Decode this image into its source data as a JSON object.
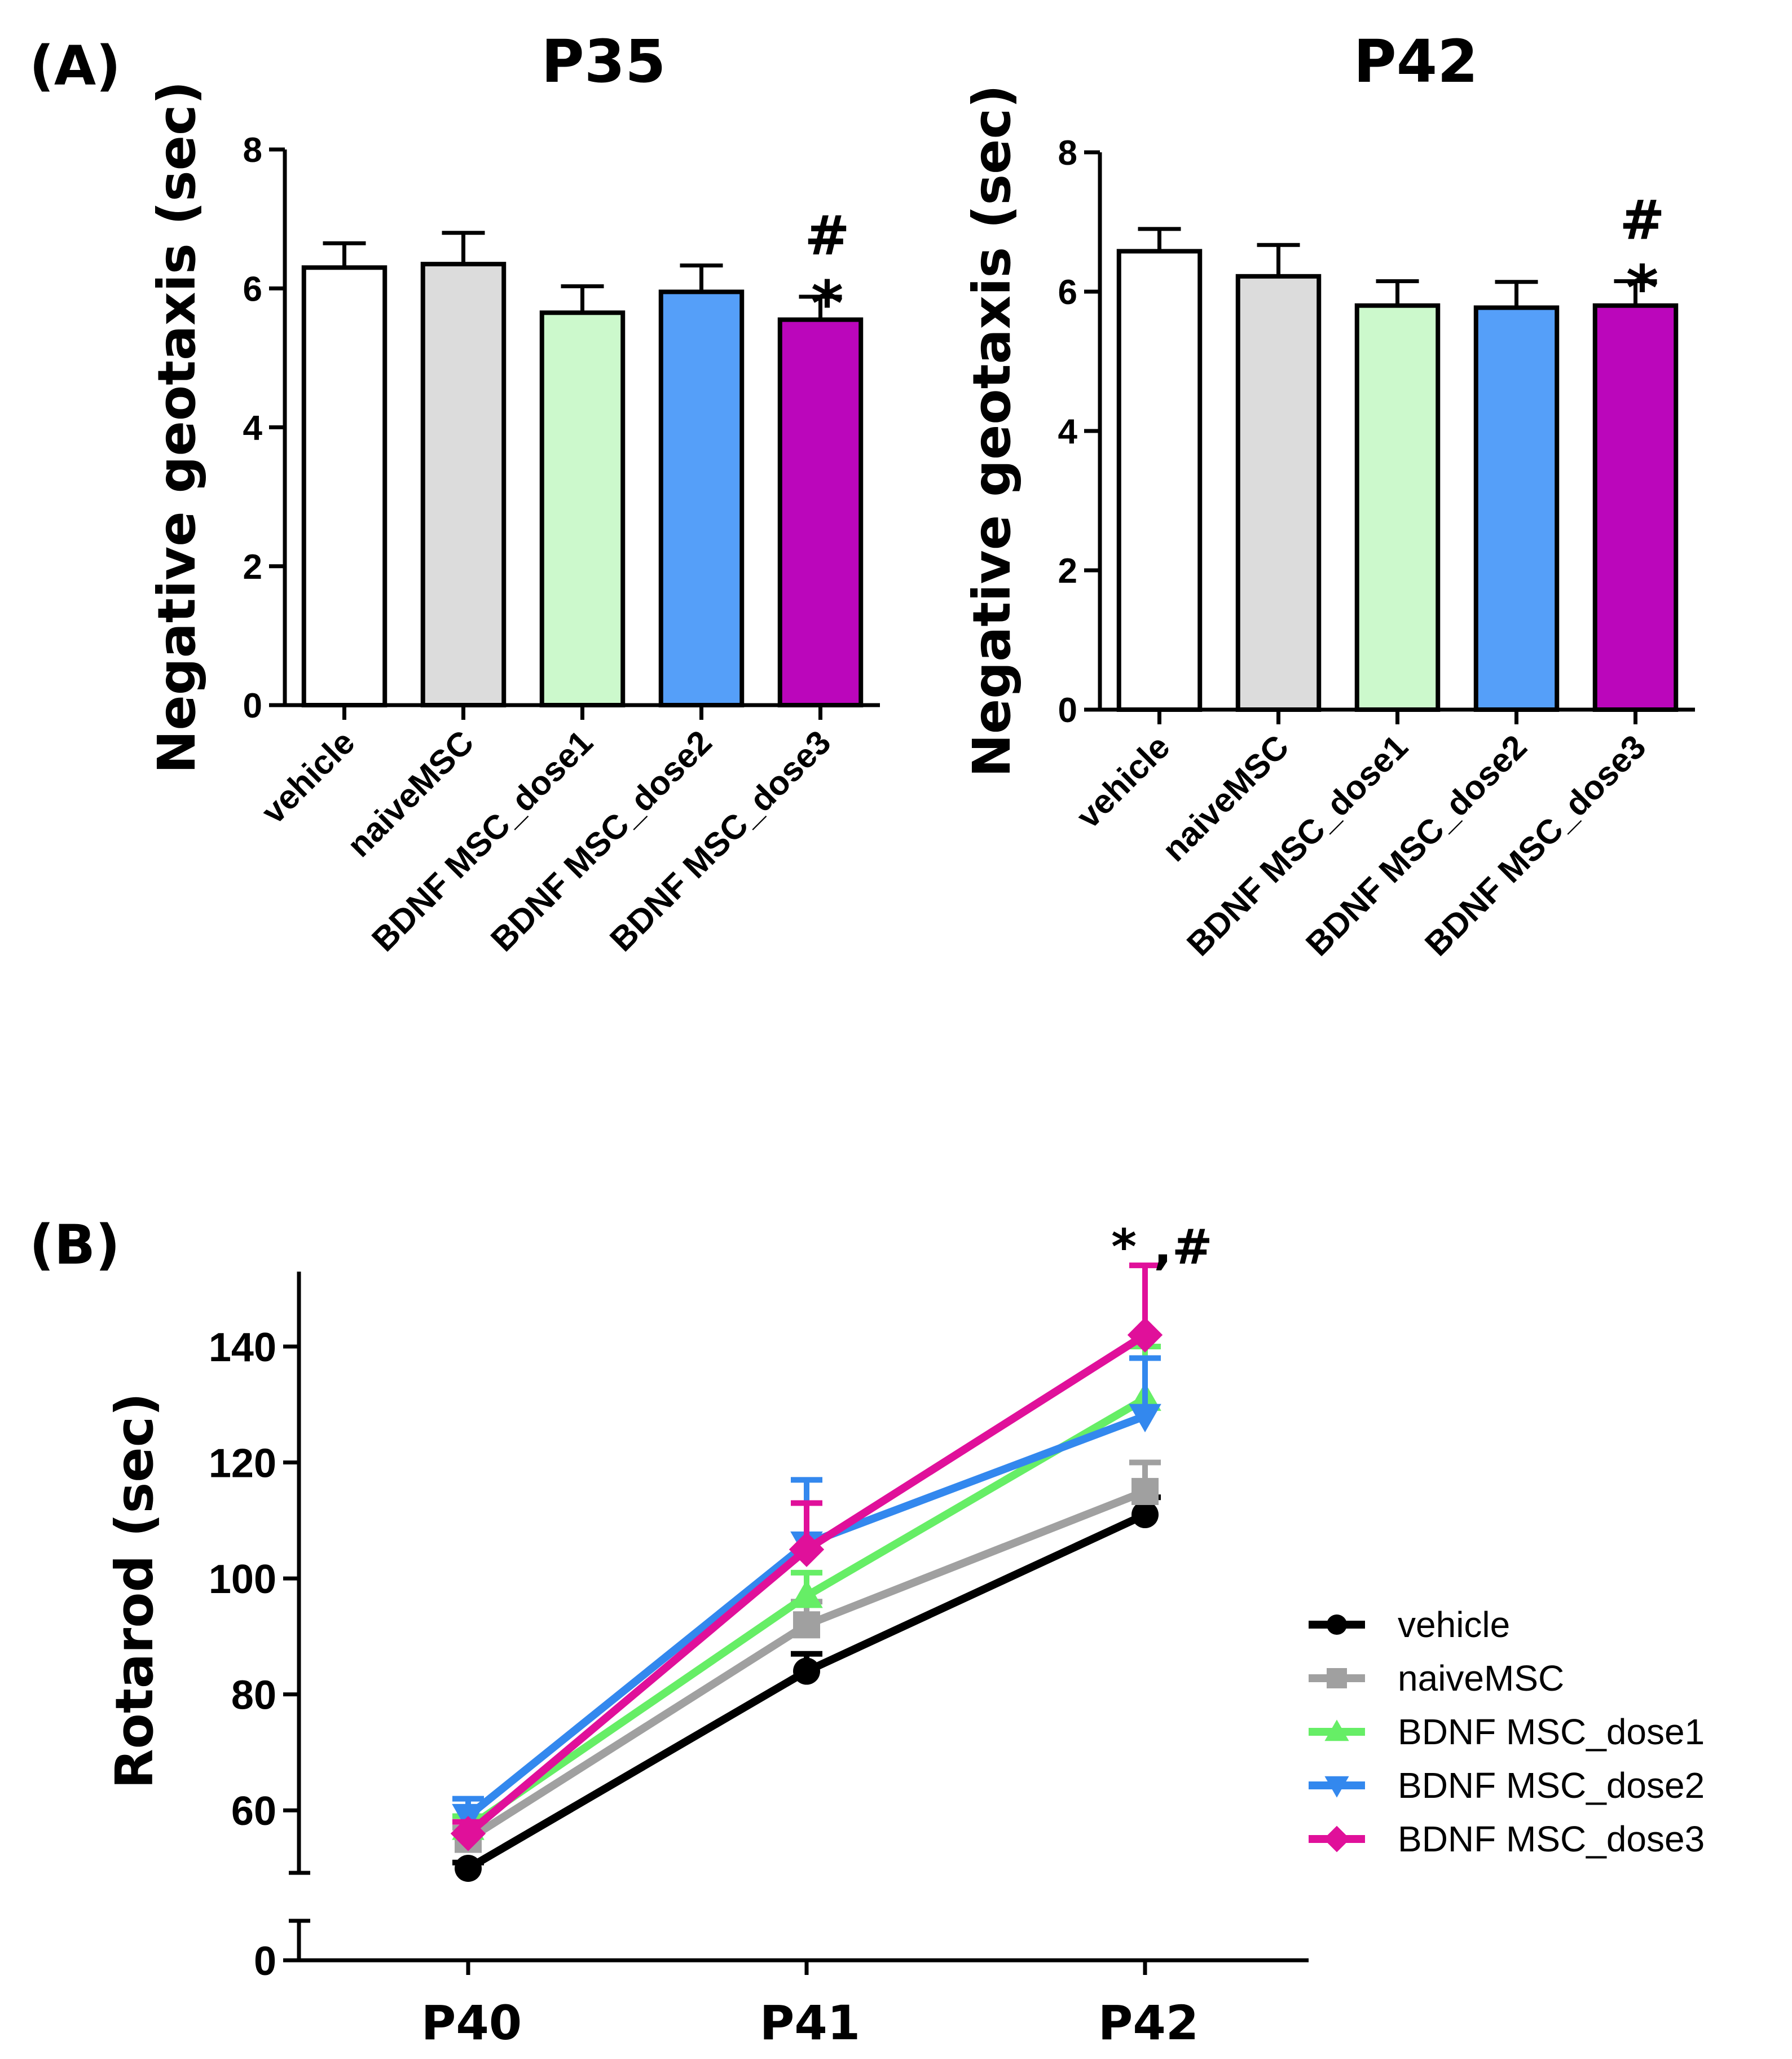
{
  "chart_data": [
    {
      "type": "bar",
      "panel": "(A)",
      "title": "P35",
      "xlabel": "",
      "ylabel": "Negative geotaxis (sec)",
      "ylim": [
        0,
        8
      ],
      "yticks": [
        0,
        2,
        4,
        6,
        8
      ],
      "categories": [
        "vehicle",
        "naiveMSC",
        "BDNF MSC_dose1",
        "BDNF MSC_dose2",
        "BDNF MSC_dose3"
      ],
      "values": [
        6.3,
        6.35,
        5.65,
        5.95,
        5.55
      ],
      "errors": [
        0.35,
        0.45,
        0.38,
        0.38,
        0.33
      ],
      "colors": [
        "#ffffff",
        "#dcdcdc",
        "#ccf9cc",
        "#559ff9",
        "#bb06bb"
      ],
      "annotations": [
        {
          "category": "BDNF MSC_dose3",
          "labels": [
            "#",
            "*"
          ]
        }
      ]
    },
    {
      "type": "bar",
      "panel": "",
      "title": "P42",
      "xlabel": "",
      "ylabel": "Negative geotaxis (sec)",
      "ylim": [
        0,
        8
      ],
      "yticks": [
        0,
        2,
        4,
        6,
        8
      ],
      "categories": [
        "vehicle",
        "naiveMSC",
        "BDNF MSC_dose1",
        "BDNF MSC_dose2",
        "BDNF MSC_dose3"
      ],
      "values": [
        6.58,
        6.22,
        5.8,
        5.77,
        5.8
      ],
      "errors": [
        0.32,
        0.45,
        0.35,
        0.37,
        0.35
      ],
      "colors": [
        "#ffffff",
        "#dcdcdc",
        "#ccf9cc",
        "#559ff9",
        "#bb06bb"
      ],
      "annotations": [
        {
          "category": "BDNF MSC_dose3",
          "labels": [
            "#",
            "*"
          ]
        }
      ]
    },
    {
      "type": "line",
      "panel": "(B)",
      "title": "",
      "xlabel": "",
      "ylabel": "Rotarod (sec)",
      "categories": [
        "P40",
        "P41",
        "P42"
      ],
      "ylim": [
        0,
        150
      ],
      "ybreak": [
        10,
        50
      ],
      "yticks": [
        0,
        60,
        80,
        100,
        120,
        140
      ],
      "legend_position": "right",
      "annotation": "* ,#",
      "series": [
        {
          "name": "vehicle",
          "color": "#000000",
          "marker": "circle",
          "values": [
            50,
            84,
            111
          ],
          "errors": [
            1,
            3,
            3
          ]
        },
        {
          "name": "naiveMSC",
          "color": "#a0a0a0",
          "marker": "square",
          "values": [
            55,
            92,
            115
          ],
          "errors": [
            2,
            4,
            5
          ]
        },
        {
          "name": "BDNF MSC_dose1",
          "color": "#66ee66",
          "marker": "triangle-up",
          "values": [
            57,
            97,
            131
          ],
          "errors": [
            2,
            4,
            9
          ]
        },
        {
          "name": "BDNF MSC_dose2",
          "color": "#3388ee",
          "marker": "triangle-down",
          "values": [
            59,
            106,
            128
          ],
          "errors": [
            3,
            11,
            10
          ]
        },
        {
          "name": "BDNF MSC_dose3",
          "color": "#e0109a",
          "marker": "diamond",
          "values": [
            56,
            105,
            142
          ],
          "errors": [
            2,
            8,
            12
          ]
        }
      ]
    }
  ]
}
